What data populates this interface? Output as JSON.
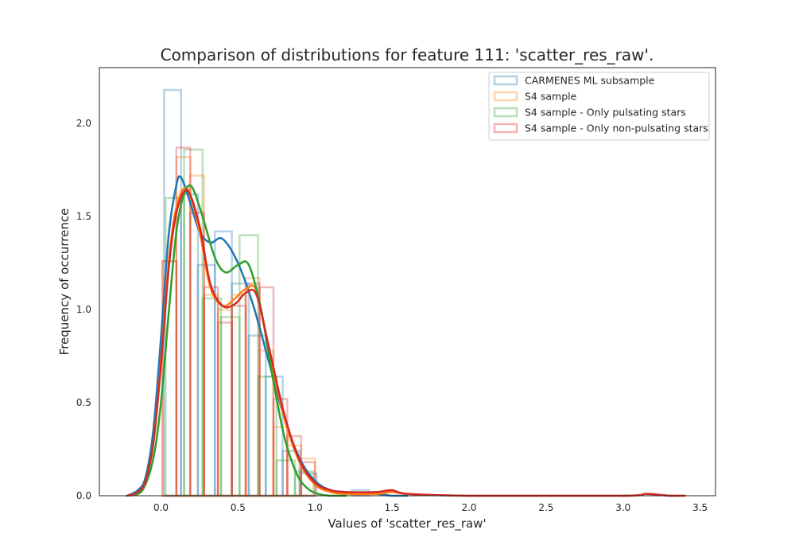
{
  "chart_data": {
    "type": "histogram_kde",
    "title": "Comparison of distributions for feature 111: 'scatter_res_raw'.",
    "xlabel": "Values of 'scatter_res_raw'",
    "ylabel": "Frequency of occurrence",
    "xlim": [
      -0.4,
      3.6
    ],
    "ylim": [
      0.0,
      2.3
    ],
    "x_ticks": [
      0.0,
      0.5,
      1.0,
      1.5,
      2.0,
      2.5,
      3.0,
      3.5
    ],
    "x_tick_labels": [
      "0.0",
      "0.5",
      "1.0",
      "1.5",
      "2.0",
      "2.5",
      "3.0",
      "3.5"
    ],
    "y_ticks": [
      0.0,
      0.5,
      1.0,
      1.5,
      2.0
    ],
    "y_tick_labels": [
      "0.0",
      "0.5",
      "1.0",
      "1.5",
      "2.0"
    ],
    "grid": false,
    "legend_position": "top-right",
    "series": [
      {
        "name": "CARMENES ML subsample",
        "color": "#1f77b4",
        "bins": [
          {
            "x0": 0.02,
            "x1": 0.13,
            "y": 2.18
          },
          {
            "x0": 0.13,
            "x1": 0.24,
            "y": 1.62
          },
          {
            "x0": 0.24,
            "x1": 0.35,
            "y": 1.24
          },
          {
            "x0": 0.35,
            "x1": 0.46,
            "y": 1.42
          },
          {
            "x0": 0.46,
            "x1": 0.57,
            "y": 1.14
          },
          {
            "x0": 0.57,
            "x1": 0.68,
            "y": 0.86
          },
          {
            "x0": 0.68,
            "x1": 0.79,
            "y": 0.64
          },
          {
            "x0": 0.79,
            "x1": 0.9,
            "y": 0.24
          },
          {
            "x0": 0.9,
            "x1": 1.01,
            "y": 0.12
          },
          {
            "x0": 1.01,
            "x1": 1.24,
            "y": 0.0
          },
          {
            "x0": 1.24,
            "x1": 1.35,
            "y": 0.03
          }
        ],
        "kde": {
          "x": [
            -0.22,
            -0.15,
            -0.1,
            -0.05,
            0.0,
            0.05,
            0.1,
            0.13,
            0.18,
            0.25,
            0.32,
            0.4,
            0.5,
            0.6,
            0.7,
            0.8,
            0.9,
            1.0,
            1.1,
            1.2,
            1.3,
            1.4,
            1.5,
            1.6
          ],
          "y": [
            0.0,
            0.03,
            0.1,
            0.35,
            0.85,
            1.4,
            1.67,
            1.71,
            1.6,
            1.42,
            1.36,
            1.38,
            1.25,
            1.02,
            0.72,
            0.42,
            0.2,
            0.08,
            0.03,
            0.02,
            0.01,
            0.01,
            0.0,
            0.0
          ]
        }
      },
      {
        "name": "S4 sample",
        "color": "#ff7f0e",
        "bins": [
          {
            "x0": 0.01,
            "x1": 0.1,
            "y": 1.26
          },
          {
            "x0": 0.1,
            "x1": 0.19,
            "y": 1.82
          },
          {
            "x0": 0.19,
            "x1": 0.28,
            "y": 1.72
          },
          {
            "x0": 0.28,
            "x1": 0.37,
            "y": 1.08
          },
          {
            "x0": 0.37,
            "x1": 0.46,
            "y": 1.0
          },
          {
            "x0": 0.46,
            "x1": 0.55,
            "y": 1.08
          },
          {
            "x0": 0.55,
            "x1": 0.64,
            "y": 1.17
          },
          {
            "x0": 0.64,
            "x1": 0.73,
            "y": 0.78
          },
          {
            "x0": 0.73,
            "x1": 0.82,
            "y": 0.37
          },
          {
            "x0": 0.82,
            "x1": 0.91,
            "y": 0.27
          },
          {
            "x0": 0.91,
            "x1": 1.0,
            "y": 0.2
          }
        ],
        "kde": {
          "x": [
            -0.22,
            -0.15,
            -0.1,
            -0.05,
            0.0,
            0.05,
            0.1,
            0.17,
            0.25,
            0.32,
            0.4,
            0.48,
            0.55,
            0.62,
            0.7,
            0.8,
            0.9,
            1.0,
            1.1,
            1.2,
            1.4,
            1.5,
            1.6,
            2.0,
            3.0,
            3.15,
            3.3,
            3.4
          ],
          "y": [
            0.0,
            0.02,
            0.08,
            0.28,
            0.72,
            1.25,
            1.55,
            1.65,
            1.42,
            1.12,
            1.02,
            1.06,
            1.11,
            1.1,
            0.78,
            0.42,
            0.18,
            0.06,
            0.02,
            0.01,
            0.01,
            0.02,
            0.01,
            0.0,
            0.0,
            0.01,
            0.0,
            0.0
          ]
        }
      },
      {
        "name": "S4 sample - Only pulsating stars",
        "color": "#2ca02c",
        "bins": [
          {
            "x0": 0.03,
            "x1": 0.15,
            "y": 1.6
          },
          {
            "x0": 0.15,
            "x1": 0.27,
            "y": 1.86
          },
          {
            "x0": 0.27,
            "x1": 0.39,
            "y": 1.06
          },
          {
            "x0": 0.39,
            "x1": 0.51,
            "y": 0.96
          },
          {
            "x0": 0.51,
            "x1": 0.63,
            "y": 1.4
          },
          {
            "x0": 0.63,
            "x1": 0.75,
            "y": 0.64
          },
          {
            "x0": 0.75,
            "x1": 0.87,
            "y": 0.19
          },
          {
            "x0": 0.87,
            "x1": 0.99,
            "y": 0.13
          }
        ],
        "kde": {
          "x": [
            -0.2,
            -0.12,
            -0.05,
            0.0,
            0.05,
            0.1,
            0.15,
            0.2,
            0.27,
            0.35,
            0.42,
            0.5,
            0.57,
            0.65,
            0.72,
            0.8,
            0.88,
            0.95,
            1.02,
            1.1,
            1.2
          ],
          "y": [
            0.0,
            0.03,
            0.2,
            0.5,
            0.98,
            1.42,
            1.62,
            1.66,
            1.5,
            1.28,
            1.2,
            1.24,
            1.24,
            1.0,
            0.66,
            0.32,
            0.12,
            0.04,
            0.01,
            0.0,
            0.0
          ]
        }
      },
      {
        "name": "S4 sample - Only non-pulsating stars",
        "color": "#d62728",
        "bins": [
          {
            "x0": 0.01,
            "x1": 0.1,
            "y": 1.26
          },
          {
            "x0": 0.1,
            "x1": 0.19,
            "y": 1.87
          },
          {
            "x0": 0.19,
            "x1": 0.28,
            "y": 1.52
          },
          {
            "x0": 0.28,
            "x1": 0.37,
            "y": 1.12
          },
          {
            "x0": 0.37,
            "x1": 0.46,
            "y": 0.93
          },
          {
            "x0": 0.46,
            "x1": 0.55,
            "y": 1.02
          },
          {
            "x0": 0.55,
            "x1": 0.64,
            "y": 1.14
          },
          {
            "x0": 0.64,
            "x1": 0.73,
            "y": 1.12
          },
          {
            "x0": 0.73,
            "x1": 0.82,
            "y": 0.52
          },
          {
            "x0": 0.82,
            "x1": 0.91,
            "y": 0.32
          },
          {
            "x0": 0.91,
            "x1": 1.0,
            "y": 0.18
          }
        ],
        "kde": {
          "x": [
            -0.22,
            -0.15,
            -0.1,
            -0.05,
            0.0,
            0.05,
            0.1,
            0.17,
            0.25,
            0.32,
            0.4,
            0.48,
            0.55,
            0.62,
            0.7,
            0.8,
            0.9,
            1.0,
            1.1,
            1.2,
            1.4,
            1.5,
            1.6,
            2.0,
            3.0,
            3.15,
            3.3,
            3.4
          ],
          "y": [
            0.0,
            0.02,
            0.08,
            0.28,
            0.7,
            1.22,
            1.52,
            1.64,
            1.45,
            1.14,
            1.02,
            1.03,
            1.09,
            1.08,
            0.8,
            0.44,
            0.19,
            0.07,
            0.03,
            0.02,
            0.02,
            0.03,
            0.01,
            0.0,
            0.0,
            0.01,
            0.0,
            0.0
          ]
        }
      }
    ]
  }
}
